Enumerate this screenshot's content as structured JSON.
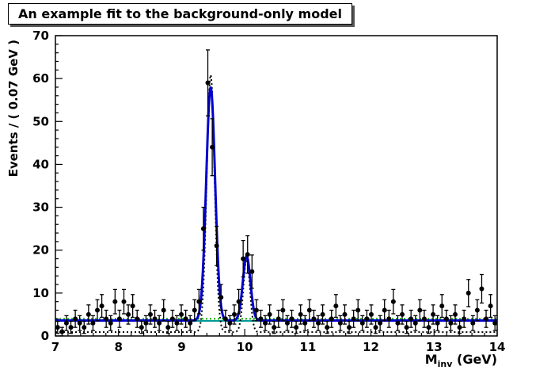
{
  "chart_data": {
    "type": "scatter",
    "title": "An example fit to the background-only model",
    "ylabel": "Events / ( 0.07 GeV )",
    "xlabel_main": "M",
    "xlabel_sub": "inv",
    "xlabel_unit": " (GeV)",
    "xlim": [
      7,
      14
    ],
    "ylim": [
      0,
      70
    ],
    "x_major_ticks": [
      7,
      8,
      9,
      10,
      11,
      12,
      13,
      14
    ],
    "y_major_ticks": [
      0,
      10,
      20,
      30,
      40,
      50,
      60,
      70
    ],
    "x_minor_step": 0.2,
    "y_minor_step": 2,
    "bin_width": 0.07,
    "points": {
      "x_start": 7.035,
      "dx": 0.07,
      "values": [
        2,
        1,
        3,
        2,
        4,
        3,
        2,
        5,
        3,
        6,
        7,
        4,
        3,
        8,
        4,
        8,
        5,
        7,
        4,
        2,
        3,
        5,
        4,
        3,
        6,
        2,
        4,
        3,
        5,
        4,
        3,
        6,
        8,
        25,
        59,
        44,
        21,
        9,
        4,
        3,
        5,
        8,
        18,
        19,
        15,
        6,
        4,
        3,
        5,
        2,
        4,
        6,
        3,
        4,
        2,
        5,
        3,
        6,
        4,
        3,
        5,
        2,
        4,
        7,
        3,
        5,
        2,
        4,
        6,
        3,
        4,
        5,
        2,
        3,
        6,
        4,
        8,
        3,
        5,
        2,
        4,
        3,
        6,
        4,
        2,
        5,
        3,
        7,
        4,
        3,
        5,
        2,
        4,
        10,
        3,
        6,
        11,
        4,
        7,
        3
      ]
    },
    "curves": {
      "total_fit": {
        "name": "signal-plus-background-fit",
        "color": "#0000cc",
        "style": "solid",
        "width": 3,
        "background": 3.6,
        "peaks": [
          {
            "mu": 9.46,
            "sigma": 0.07,
            "amp": 54.5
          },
          {
            "mu": 10.03,
            "sigma": 0.06,
            "amp": 15.0
          }
        ]
      },
      "generator_model": {
        "name": "dotted-model-curve",
        "color": "#000000",
        "style": "dotted",
        "width": 2,
        "background": 0.9,
        "peaks": [
          {
            "mu": 9.46,
            "sigma": 0.062,
            "amp": 60.0
          },
          {
            "mu": 10.03,
            "sigma": 0.052,
            "amp": 17.0
          }
        ]
      },
      "background_only_dotted": {
        "name": "background-only-fit-dotted",
        "color": "#00aa00",
        "style": "dotted",
        "width": 2,
        "level": 4.0
      },
      "background_only_solid": {
        "name": "background-component-solid",
        "color": "#009999",
        "style": "solid",
        "width": 2,
        "level": 3.5
      }
    },
    "marker": {
      "color": "#000000",
      "radius": 3
    }
  }
}
